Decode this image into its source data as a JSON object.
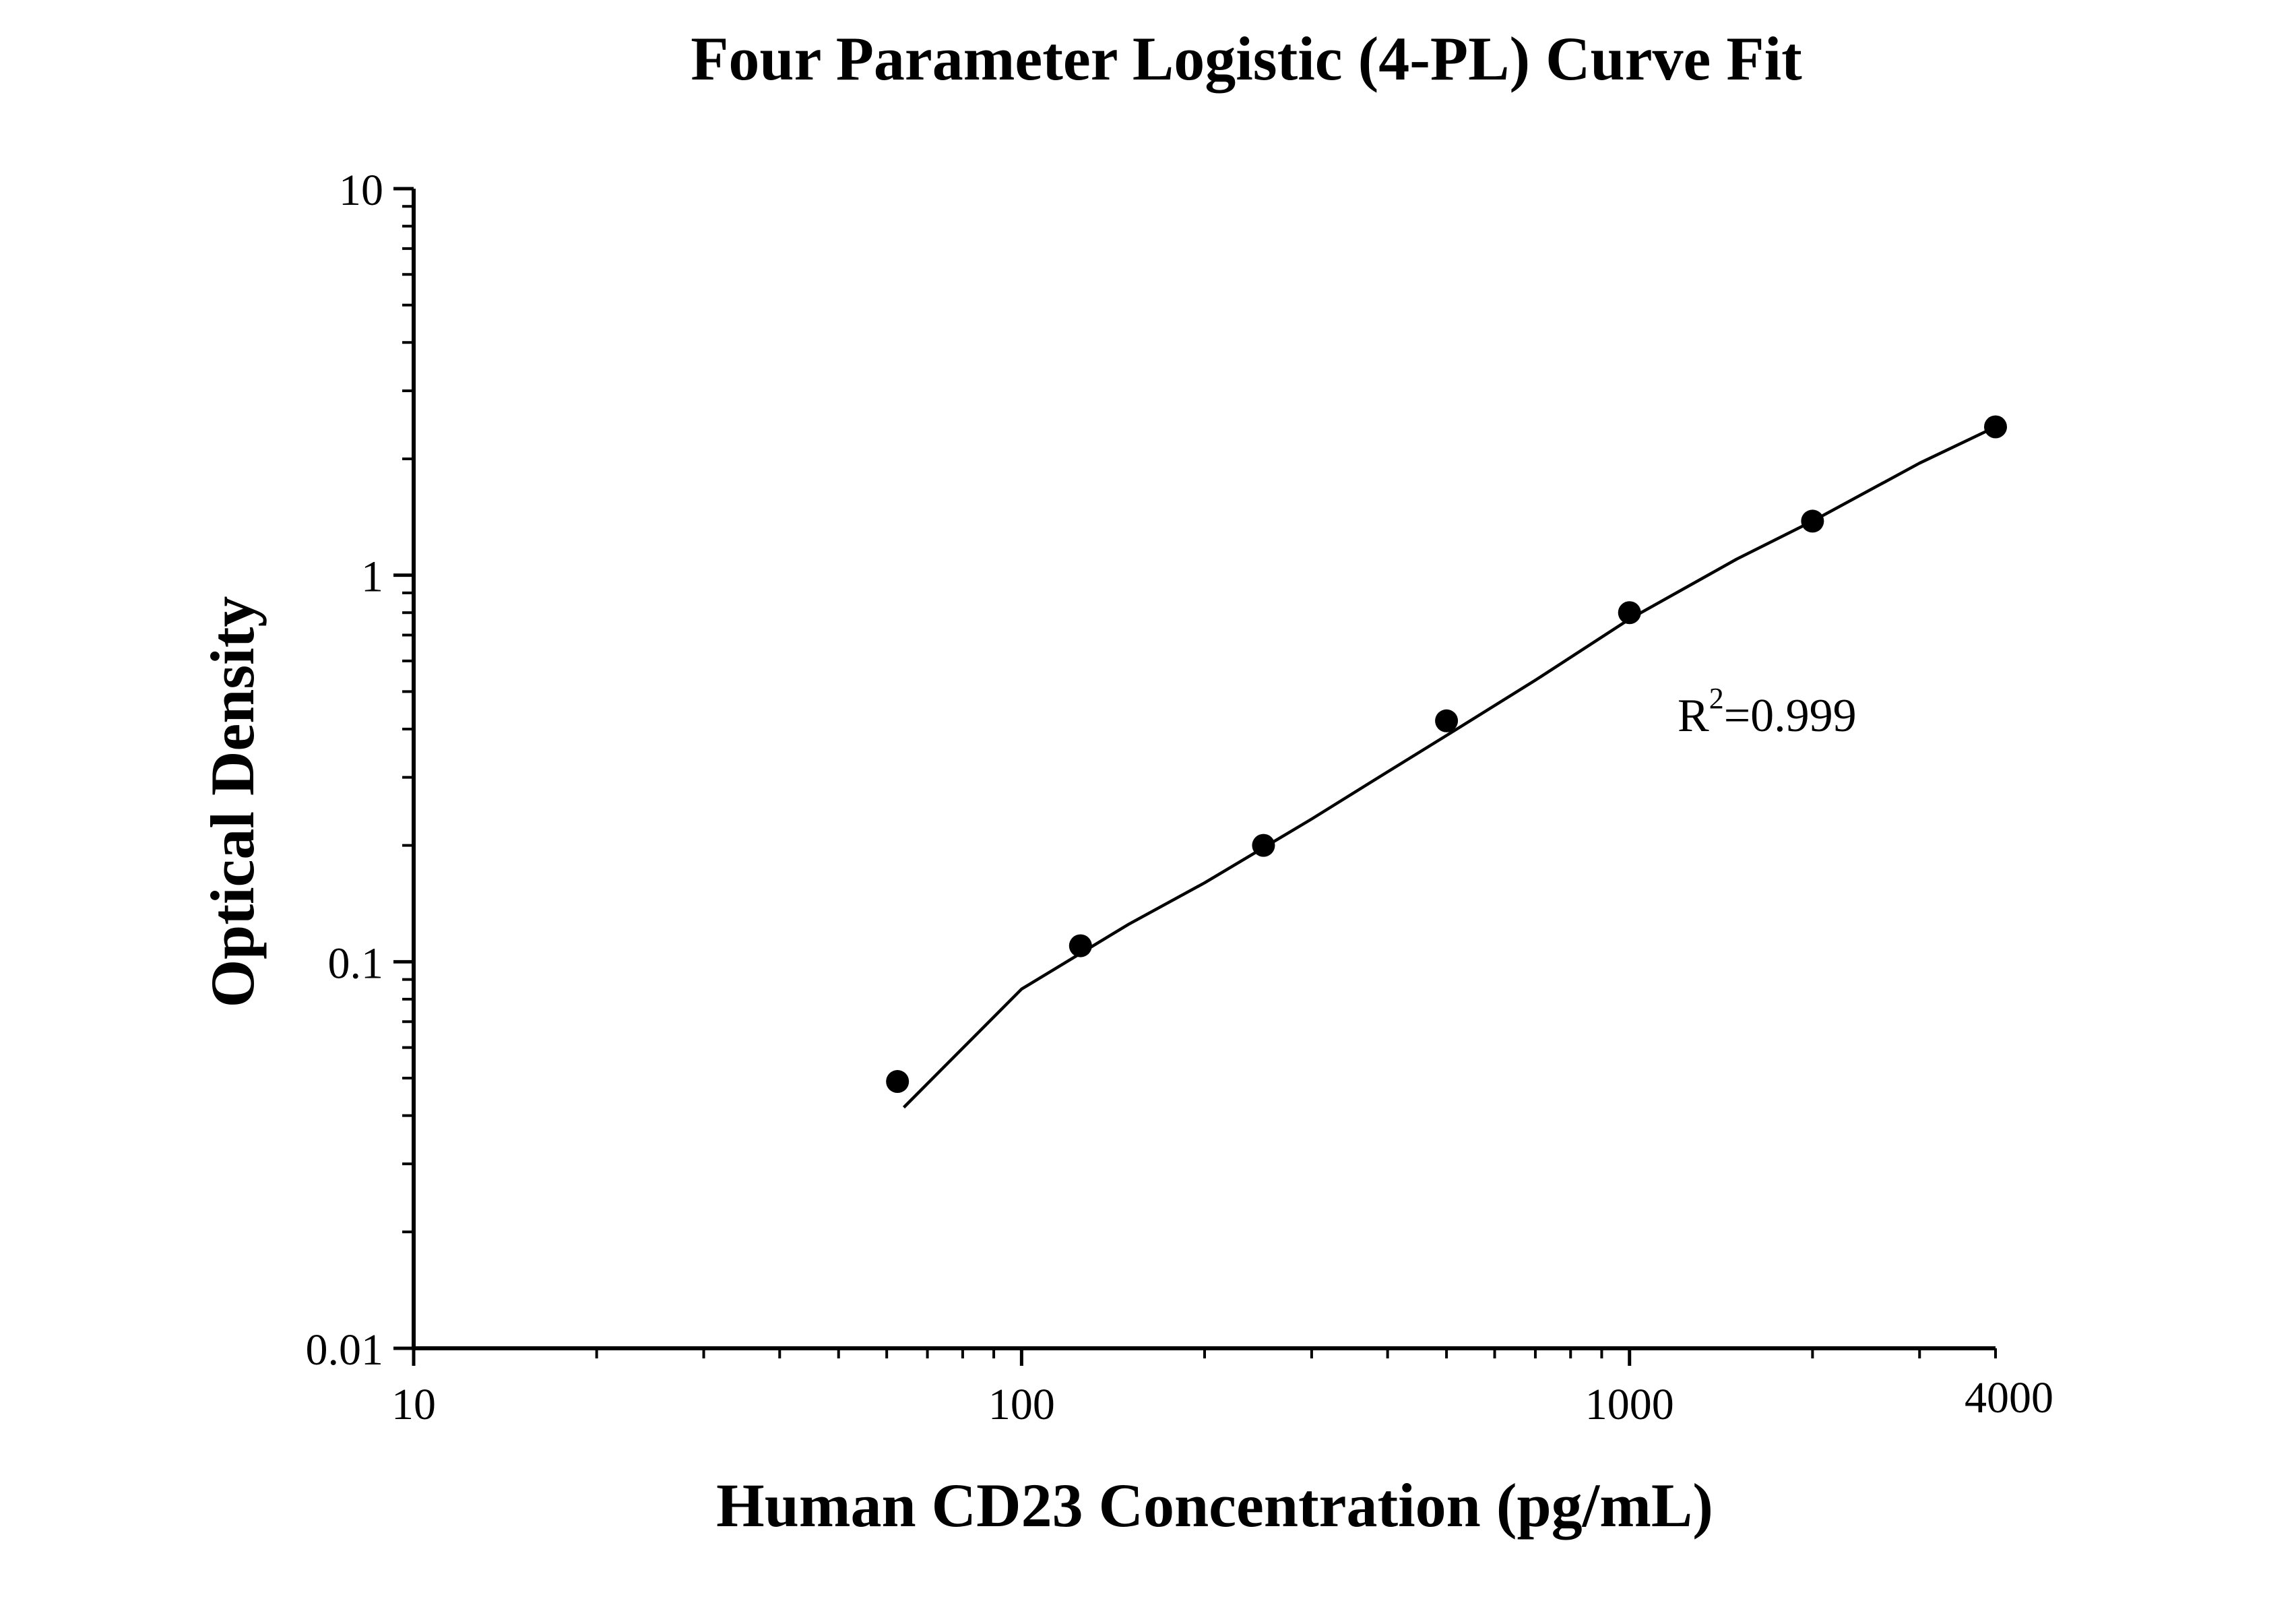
{
  "chart_data": {
    "type": "scatter",
    "title": "Four Parameter Logistic (4-PL) Curve Fit",
    "xlabel": "Human CD23 Concentration (pg/mL)",
    "ylabel": "Optical Density",
    "x_scale": "log",
    "y_scale": "log",
    "xlim": [
      10,
      4000
    ],
    "ylim": [
      0.01,
      10
    ],
    "x_tick_labels": [
      "10",
      "100",
      "1000",
      "4000"
    ],
    "y_tick_labels": [
      "0.01",
      "0.1",
      "1",
      "10"
    ],
    "grid": false,
    "legend": "none",
    "annotation": {
      "base": "R",
      "superscript": "2",
      "rest": "=0.999"
    },
    "points": {
      "x": [
        62.5,
        125,
        250,
        500,
        1000,
        2000,
        4000
      ],
      "y": [
        0.049,
        0.11,
        0.2,
        0.42,
        0.8,
        1.38,
        2.42
      ]
    },
    "fit_curve": {
      "x": [
        64,
        100,
        150,
        200,
        300,
        400,
        500,
        700,
        1000,
        1500,
        2000,
        3000,
        4000
      ],
      "y": [
        0.042,
        0.085,
        0.125,
        0.16,
        0.234,
        0.31,
        0.385,
        0.535,
        0.77,
        1.1,
        1.38,
        1.95,
        2.42
      ]
    },
    "colors": {
      "marker": "#000000",
      "line": "#000000",
      "axis": "#000000"
    }
  }
}
